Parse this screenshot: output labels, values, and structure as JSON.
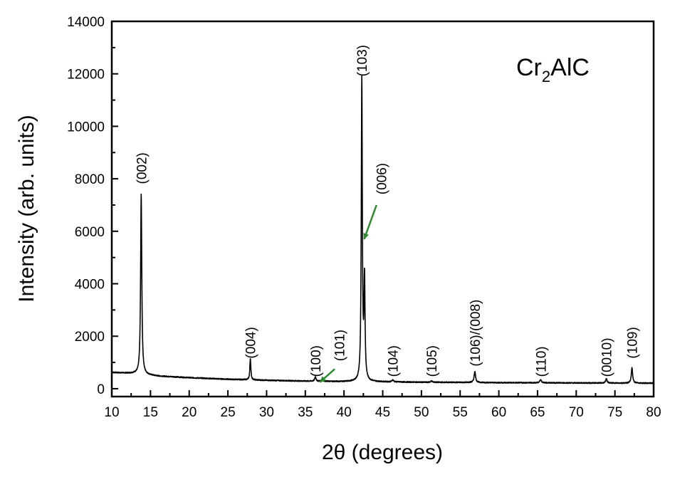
{
  "chart_data": {
    "type": "line",
    "title": "",
    "inset_label": {
      "main": "Cr",
      "sub": "2",
      "rest": "AlC"
    },
    "xlabel": "2θ (degrees)",
    "ylabel": "Intensity (arb. units)",
    "xlim": [
      10,
      80
    ],
    "ylim": [
      -300,
      14000
    ],
    "xticks": [
      10,
      15,
      20,
      25,
      30,
      35,
      40,
      45,
      50,
      55,
      60,
      65,
      70,
      75,
      80
    ],
    "yticks": [
      0,
      2000,
      4000,
      6000,
      8000,
      10000,
      12000,
      14000
    ],
    "grid": false,
    "colors": {
      "line": "#000000",
      "arrow": "#2e8b2e"
    },
    "series": [
      {
        "baseline": [
          [
            10,
            620
          ],
          [
            13,
            580
          ],
          [
            16,
            480
          ],
          [
            20,
            420
          ],
          [
            25,
            360
          ],
          [
            30,
            320
          ],
          [
            35,
            290
          ],
          [
            40,
            270
          ],
          [
            44,
            265
          ],
          [
            50,
            245
          ],
          [
            55,
            240
          ],
          [
            60,
            230
          ],
          [
            65,
            225
          ],
          [
            70,
            220
          ],
          [
            75,
            215
          ],
          [
            80,
            210
          ]
        ],
        "peaks": [
          {
            "x": 13.8,
            "height": 6850,
            "width": 0.18
          },
          {
            "x": 27.9,
            "height": 820,
            "width": 0.15
          },
          {
            "x": 36.3,
            "height": 170,
            "width": 0.2
          },
          {
            "x": 37.2,
            "height": 90,
            "width": 0.2
          },
          {
            "x": 42.3,
            "height": 11450,
            "width": 0.16
          },
          {
            "x": 42.65,
            "height": 3800,
            "width": 0.16
          },
          {
            "x": 46.3,
            "height": 70,
            "width": 0.25
          },
          {
            "x": 51.3,
            "height": 50,
            "width": 0.25
          },
          {
            "x": 56.9,
            "height": 420,
            "width": 0.22
          },
          {
            "x": 65.4,
            "height": 120,
            "width": 0.25
          },
          {
            "x": 73.9,
            "height": 170,
            "width": 0.2
          },
          {
            "x": 77.2,
            "height": 590,
            "width": 0.2
          }
        ]
      }
    ],
    "annotations": [
      {
        "text": "(002)",
        "x": 13.8,
        "y": 7800
      },
      {
        "text": "(004)",
        "x": 27.9,
        "y": 1150
      },
      {
        "text": "(100)",
        "x": 36.3,
        "y": 450
      },
      {
        "text": "(101)",
        "x": 39.4,
        "y": 1050
      },
      {
        "text": "(103)",
        "x": 42.3,
        "y": 11900
      },
      {
        "text": "(006)",
        "x": 44.8,
        "y": 7400
      },
      {
        "text": "(104)",
        "x": 46.3,
        "y": 450
      },
      {
        "text": "(105)",
        "x": 51.3,
        "y": 450
      },
      {
        "text": "(106)/(008)",
        "x": 56.9,
        "y": 850
      },
      {
        "text": "(110)",
        "x": 65.4,
        "y": 450
      },
      {
        "text": "(0010)",
        "x": 73.9,
        "y": 450
      },
      {
        "text": "(109)",
        "x": 77.2,
        "y": 1150
      }
    ],
    "arrows": [
      {
        "from": [
          38.8,
          750
        ],
        "to": [
          36.9,
          250
        ]
      },
      {
        "from": [
          44.2,
          7000
        ],
        "to": [
          42.6,
          5700
        ]
      }
    ]
  }
}
